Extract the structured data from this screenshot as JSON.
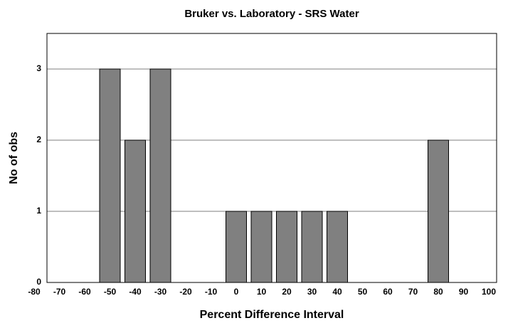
{
  "chart_data": {
    "type": "bar",
    "title": "Bruker vs. Laboratory - SRS Water",
    "x_label": "Percent Difference Interval",
    "y_label": "No of obs",
    "categories": [
      "-80",
      "-70",
      "-60",
      "-50",
      "-40",
      "-30",
      "-20",
      "-10",
      "0",
      "10",
      "20",
      "30",
      "40",
      "50",
      "60",
      "70",
      "80",
      "90",
      "100"
    ],
    "values": [
      0,
      0,
      0,
      3,
      2,
      3,
      0,
      0,
      1,
      1,
      1,
      1,
      1,
      0,
      0,
      0,
      2,
      0,
      0
    ],
    "color": "#808080",
    "ylim": [
      0,
      3.5
    ],
    "yticks": [
      0,
      1,
      2,
      3
    ],
    "grid": true
  }
}
